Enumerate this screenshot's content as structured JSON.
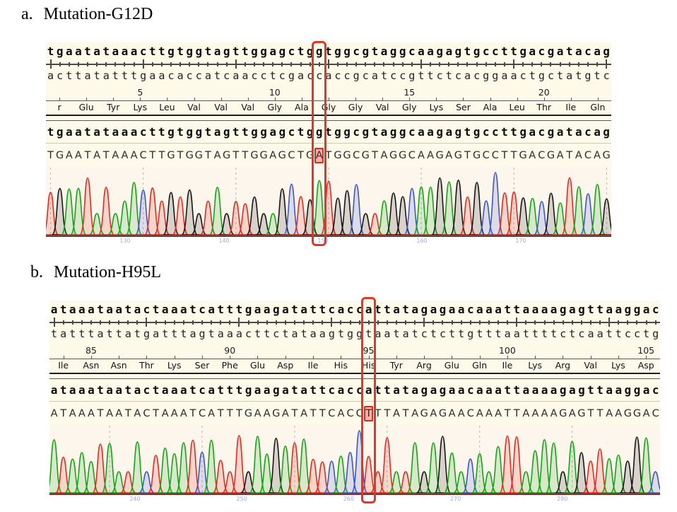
{
  "colors": {
    "page_background": "#ffffff",
    "sequence_panel_bg": "#fdfaea",
    "chromatogram_bg": "#fdf6ec",
    "highlight_box": "#e0372b",
    "mutant_cell_bg": "#f7b2ae",
    "base_A": "#17a317",
    "base_C": "#3b57c9",
    "base_G": "#161616",
    "base_T": "#e02b20"
  },
  "figure": {
    "panels": [
      {
        "panel_label": "a.",
        "title": "Mutation-G12D",
        "top_strand": "tgaatataaacttgtggtagttggagctggtggcgtaggcaagagtgccttgacgatacag",
        "bottom_strand": "acttatatttgaacaccatcaacctcgaccaccgcatccgttctcacggaactgctatgtc",
        "sequenced_read": "TGAATATAAACTTGTGGTAGTTGGAGCTGATGGCGTAGGCAAGAGTGCCTTGACGATACAG",
        "mutation_index": 29,
        "mutated_base": "A",
        "amino_acids": [
          {
            "aa": "r",
            "num": ""
          },
          {
            "aa": "Glu",
            "num": ""
          },
          {
            "aa": "Tyr",
            "num": ""
          },
          {
            "aa": "Lys",
            "num": "5"
          },
          {
            "aa": "Leu",
            "num": ""
          },
          {
            "aa": "Val",
            "num": ""
          },
          {
            "aa": "Val",
            "num": ""
          },
          {
            "aa": "Val",
            "num": ""
          },
          {
            "aa": "Gly",
            "num": "10"
          },
          {
            "aa": "Ala",
            "num": ""
          },
          {
            "aa": "Gly",
            "num": ""
          },
          {
            "aa": "Gly",
            "num": ""
          },
          {
            "aa": "Val",
            "num": ""
          },
          {
            "aa": "Gly",
            "num": "15"
          },
          {
            "aa": "Lys",
            "num": ""
          },
          {
            "aa": "Ser",
            "num": ""
          },
          {
            "aa": "Ala",
            "num": ""
          },
          {
            "aa": "Leu",
            "num": ""
          },
          {
            "aa": "Thr",
            "num": "20"
          },
          {
            "aa": "Ile",
            "num": ""
          },
          {
            "aa": "Gln",
            "num": ""
          }
        ],
        "trace_labels": [
          "130",
          "140",
          "150",
          "160",
          "170"
        ],
        "gridline_cols": [
          0,
          10,
          20,
          30,
          40,
          50,
          60
        ],
        "peak_boost": {
          "29": 0.87,
          "48": 1.0,
          "43": 0.85
        }
      },
      {
        "panel_label": "b.",
        "title": "Mutation-H95L",
        "top_strand": "ataaataatactaaatcatttgaagatattcaccattatagagaacaaattaaaagagttaaggac",
        "bottom_strand": "tatttattatgatttagtaaacttctataagtggtaatatctcttgtttaattttctcaattcctg",
        "sequenced_read": "ATAAATAATACTAAATCATTTGAAGATATTCACCTTTATAGAGAACAAATTAAAAGAGTTAAGGAC",
        "mutation_index": 34,
        "mutated_base": "T",
        "amino_acids": [
          {
            "aa": "Ile",
            "num": ""
          },
          {
            "aa": "Asn",
            "num": "85"
          },
          {
            "aa": "Asn",
            "num": ""
          },
          {
            "aa": "Thr",
            "num": ""
          },
          {
            "aa": "Lys",
            "num": ""
          },
          {
            "aa": "Ser",
            "num": ""
          },
          {
            "aa": "Phe",
            "num": "90"
          },
          {
            "aa": "Glu",
            "num": ""
          },
          {
            "aa": "Asp",
            "num": ""
          },
          {
            "aa": "Ile",
            "num": ""
          },
          {
            "aa": "His",
            "num": ""
          },
          {
            "aa": "His",
            "num": "95"
          },
          {
            "aa": "Tyr",
            "num": ""
          },
          {
            "aa": "Arg",
            "num": ""
          },
          {
            "aa": "Glu",
            "num": ""
          },
          {
            "aa": "Gln",
            "num": ""
          },
          {
            "aa": "Ile",
            "num": "100"
          },
          {
            "aa": "Lys",
            "num": ""
          },
          {
            "aa": "Arg",
            "num": ""
          },
          {
            "aa": "Val",
            "num": ""
          },
          {
            "aa": "Lys",
            "num": ""
          },
          {
            "aa": "Asp",
            "num": "105"
          }
        ],
        "trace_labels": [
          "240",
          "250",
          "260",
          "270",
          "280"
        ],
        "gridline_cols": [
          6,
          16,
          26,
          36,
          46,
          56
        ],
        "peak_boost": {
          "33": 1.0,
          "20": 0.92,
          "50": 0.9
        }
      }
    ]
  },
  "chart_data": [
    {
      "type": "area",
      "subtype": "sanger_chromatogram_trace",
      "title": "Mutation-G12D",
      "base_calls": "TGAATATAAACTTGTGGTAGTTGGAGCTGATGGCGTAGGCAAGAGTGCCTTGACGATACAG",
      "reference_sequence": "tgaatataaacttgtggtagttggagctggtggcgtaggcaagagtgccttgacgatacag",
      "channel_colors": {
        "A": "#17a317",
        "C": "#3b57c9",
        "G": "#161616",
        "T": "#e02b20"
      },
      "highlighted_call": {
        "index": 29,
        "reference_base": "g",
        "called_base": "A"
      },
      "residue_ticks": [
        "5",
        "10",
        "15",
        "20"
      ],
      "legend_position": "none",
      "grid": "dashed-vertical"
    },
    {
      "type": "area",
      "subtype": "sanger_chromatogram_trace",
      "title": "Mutation-H95L",
      "base_calls": "ATAAATAATACTAAATCATTTGAAGATATTCACCTTTATAGAGAACAAATTAAAAGAGTTAAGGAC",
      "reference_sequence": "ataaataatactaaatcatttgaagatattcaccattatagagaacaaattaaaagagttaaggac",
      "channel_colors": {
        "A": "#17a317",
        "C": "#3b57c9",
        "G": "#161616",
        "T": "#e02b20"
      },
      "highlighted_call": {
        "index": 34,
        "reference_base": "a",
        "called_base": "T"
      },
      "residue_ticks": [
        "85",
        "90",
        "95",
        "100",
        "105"
      ],
      "legend_position": "none",
      "grid": "dashed-vertical"
    }
  ]
}
